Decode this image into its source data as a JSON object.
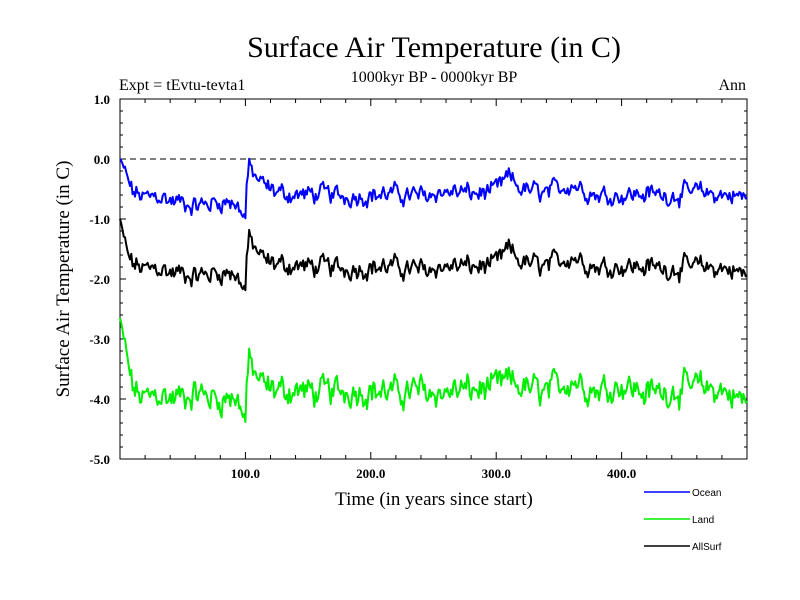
{
  "chart_data": {
    "type": "line",
    "title": "Surface Air Temperature (in C)",
    "subtitle_left": "Expt = tEvtu-tevta1",
    "subtitle_center": "1000kyr BP - 0000kyr BP",
    "subtitle_right": "Ann",
    "xlabel": "Time (in years since start)",
    "ylabel": "Surface Air Temperature (in C)",
    "xlim": [
      0,
      500
    ],
    "ylim": [
      -5.0,
      1.0
    ],
    "x_ticks": [
      100,
      200,
      300,
      400
    ],
    "x_tick_labels": [
      "100.0",
      "200.0",
      "300.0",
      "400.0"
    ],
    "y_ticks": [
      1.0,
      0.0,
      -1.0,
      -2.0,
      -3.0,
      -4.0,
      -5.0
    ],
    "y_tick_labels": [
      "1.0",
      "0.0",
      "-1.0",
      "-2.0",
      "-3.0",
      "-4.0",
      "-5.0"
    ],
    "reference_line": 0.0,
    "x_key": [
      0,
      3,
      6,
      10,
      15,
      20,
      30,
      40,
      50,
      60,
      70,
      80,
      90,
      97,
      100,
      101,
      103,
      108,
      115,
      125,
      140,
      160,
      180,
      200,
      220,
      240,
      255,
      270,
      285,
      300,
      310,
      320,
      340,
      360,
      380,
      400,
      420,
      440,
      460,
      480,
      490,
      500
    ],
    "series": [
      {
        "name": "Ocean",
        "color": "#0000ff",
        "values": [
          0.0,
          -0.15,
          -0.35,
          -0.55,
          -0.6,
          -0.65,
          -0.6,
          -0.7,
          -0.72,
          -0.78,
          -0.75,
          -0.7,
          -0.72,
          -0.85,
          -1.0,
          -0.4,
          -0.15,
          -0.3,
          -0.45,
          -0.55,
          -0.6,
          -0.58,
          -0.62,
          -0.6,
          -0.58,
          -0.62,
          -0.55,
          -0.55,
          -0.58,
          -0.52,
          -0.3,
          -0.5,
          -0.58,
          -0.4,
          -0.6,
          -0.6,
          -0.58,
          -0.6,
          -0.55,
          -0.6,
          -0.6,
          -0.65
        ],
        "noise": 0.11
      },
      {
        "name": "Land",
        "color": "#00ee00",
        "values": [
          -2.65,
          -3.0,
          -3.4,
          -3.8,
          -3.95,
          -4.0,
          -3.9,
          -4.0,
          -3.95,
          -3.9,
          -3.95,
          -4.0,
          -3.95,
          -4.1,
          -4.4,
          -3.7,
          -3.4,
          -3.6,
          -3.8,
          -3.85,
          -3.85,
          -3.9,
          -3.85,
          -3.85,
          -3.9,
          -3.85,
          -3.9,
          -3.85,
          -3.85,
          -3.8,
          -3.7,
          -3.8,
          -3.9,
          -3.65,
          -3.85,
          -3.75,
          -3.9,
          -3.85,
          -3.8,
          -3.85,
          -3.95,
          -4.05
        ],
        "noise": 0.17
      },
      {
        "name": "AllSurf",
        "color": "#000000",
        "values": [
          -1.0,
          -1.3,
          -1.6,
          -1.75,
          -1.8,
          -1.85,
          -1.8,
          -1.9,
          -1.9,
          -1.95,
          -1.92,
          -1.88,
          -1.9,
          -2.05,
          -2.2,
          -1.6,
          -1.35,
          -1.5,
          -1.7,
          -1.75,
          -1.78,
          -1.8,
          -1.82,
          -1.8,
          -1.8,
          -1.85,
          -1.8,
          -1.78,
          -1.8,
          -1.75,
          -1.5,
          -1.72,
          -1.8,
          -1.6,
          -1.8,
          -1.78,
          -1.8,
          -1.82,
          -1.8,
          -1.82,
          -1.85,
          -1.95
        ],
        "noise": 0.12
      }
    ],
    "legend": {
      "placement": "bottom-right",
      "entries": [
        "Ocean",
        "Land",
        "AllSurf"
      ]
    }
  }
}
